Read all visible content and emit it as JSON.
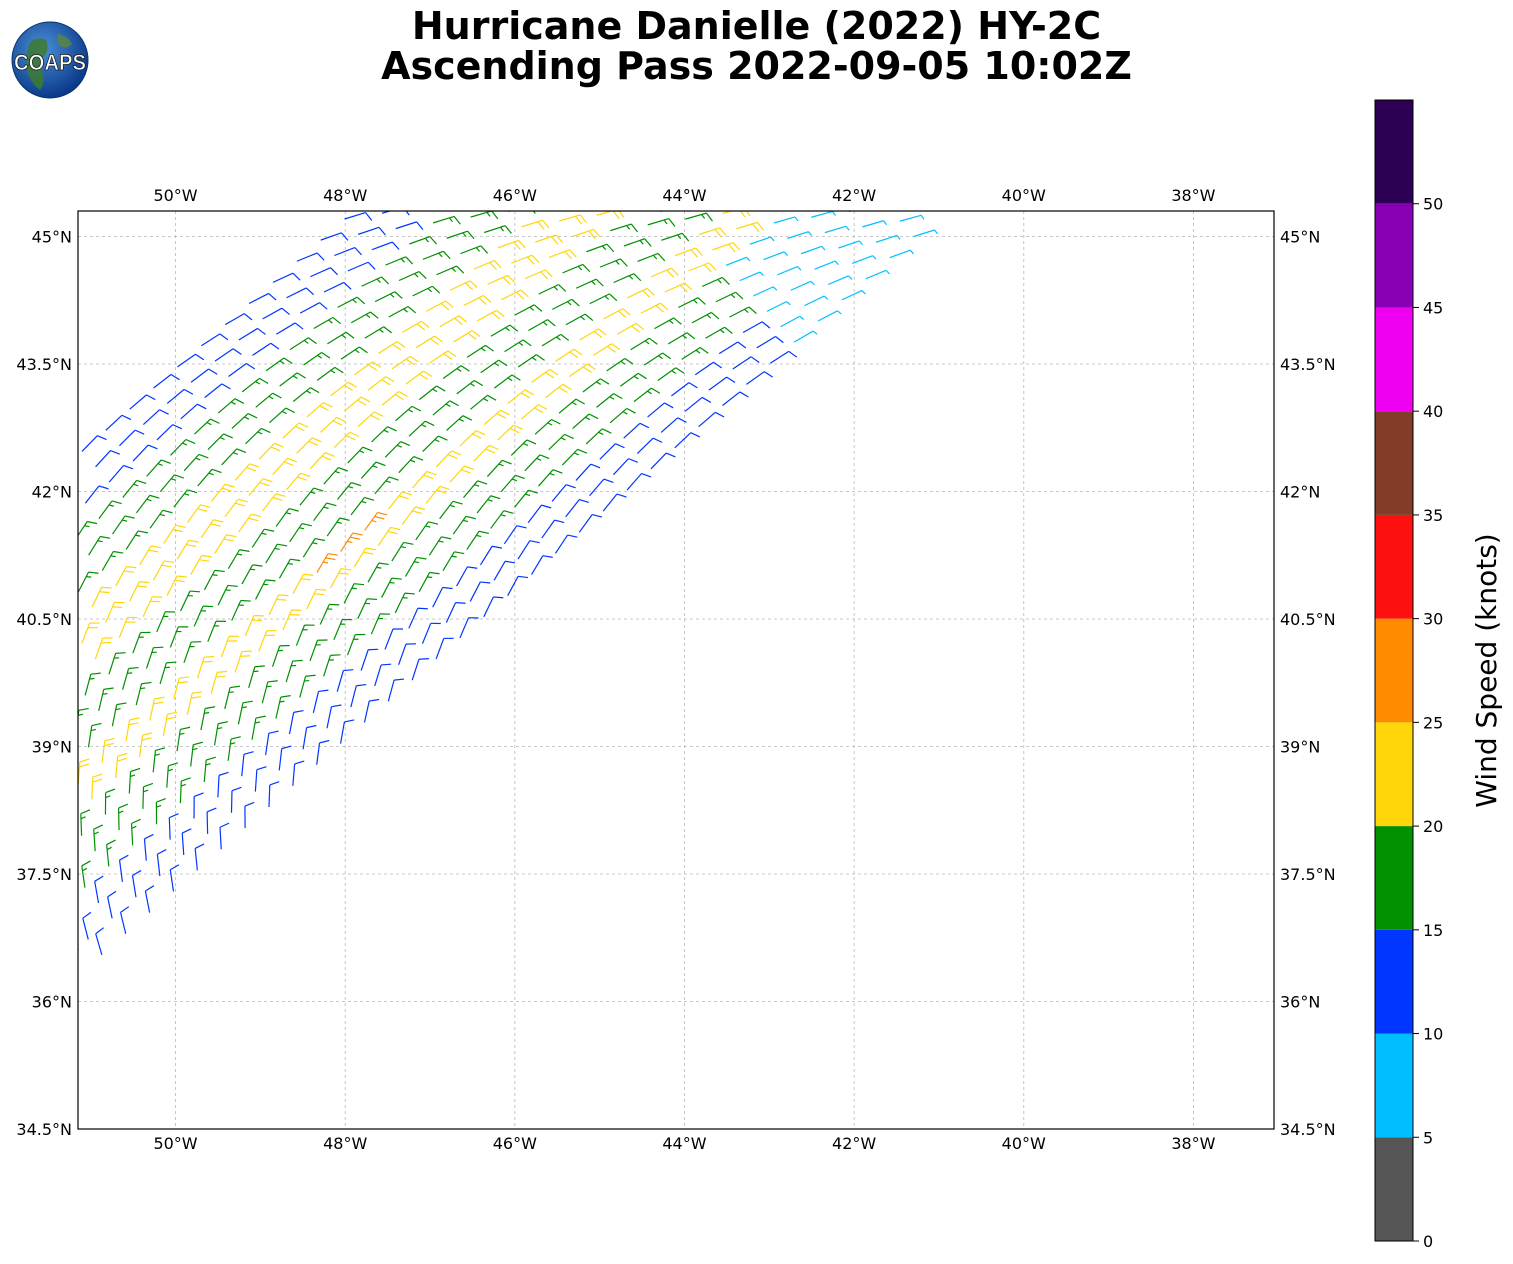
{
  "title": {
    "line1": "Hurricane Danielle (2022) HY-2C",
    "line2": "Ascending Pass 2022-09-05 10:02Z"
  },
  "logo": {
    "text": "COAPS",
    "icon": "globe-icon"
  },
  "map": {
    "lon_range": [
      -51.15,
      -37.05
    ],
    "lat_range": [
      34.5,
      45.3
    ],
    "lon_ticks": [
      {
        "value": -50,
        "label": "50°W"
      },
      {
        "value": -48,
        "label": "48°W"
      },
      {
        "value": -46,
        "label": "46°W"
      },
      {
        "value": -44,
        "label": "44°W"
      },
      {
        "value": -42,
        "label": "42°W"
      },
      {
        "value": -40,
        "label": "40°W"
      },
      {
        "value": -38,
        "label": "38°W"
      }
    ],
    "lat_ticks": [
      {
        "value": 45,
        "label": "45°N"
      },
      {
        "value": 43.5,
        "label": "43.5°N"
      },
      {
        "value": 42,
        "label": "42°N"
      },
      {
        "value": 40.5,
        "label": "40.5°N"
      },
      {
        "value": 39,
        "label": "39°N"
      },
      {
        "value": 37.5,
        "label": "37.5°N"
      },
      {
        "value": 36,
        "label": "36°N"
      },
      {
        "value": 34.5,
        "label": "34.5°N"
      }
    ],
    "grid": true
  },
  "colorbar": {
    "label": "Wind Speed (knots)",
    "ticks": [
      "0",
      "5",
      "10",
      "15",
      "20",
      "25",
      "30",
      "35",
      "40",
      "45",
      "50"
    ],
    "bins": [
      {
        "min": 0,
        "max": 5,
        "color": "#555555"
      },
      {
        "min": 5,
        "max": 10,
        "color": "#00bfff"
      },
      {
        "min": 10,
        "max": 15,
        "color": "#0036ff"
      },
      {
        "min": 15,
        "max": 20,
        "color": "#009000"
      },
      {
        "min": 20,
        "max": 25,
        "color": "#ffd60a"
      },
      {
        "min": 25,
        "max": 30,
        "color": "#ff8c00"
      },
      {
        "min": 30,
        "max": 35,
        "color": "#ff1010"
      },
      {
        "min": 35,
        "max": 40,
        "color": "#823c28"
      },
      {
        "min": 40,
        "max": 45,
        "color": "#f000f0"
      },
      {
        "min": 45,
        "max": 50,
        "color": "#8800b5"
      },
      {
        "min": 50,
        "max": 55,
        "color": "#2b0055"
      }
    ]
  },
  "chart_data": {
    "type": "scatter",
    "description_of_marks": "wind barbs",
    "swath": {
      "edge_start": [
        -51.15,
        36.3
      ],
      "edge_end": [
        -41.3,
        45.0
      ],
      "width_deg": 4.6,
      "along_track_rows": 36,
      "cross_track_cols": 20
    },
    "wind_bands": [
      {
        "from": 0.0,
        "to": 0.12,
        "speed": 12
      },
      {
        "from": 0.12,
        "to": 0.3,
        "speed": 17
      },
      {
        "from": 0.3,
        "to": 0.4,
        "speed": 22
      },
      {
        "from": 0.4,
        "to": 0.55,
        "speed": 17
      },
      {
        "from": 0.55,
        "to": 0.7,
        "speed": 22
      },
      {
        "from": 0.7,
        "to": 0.85,
        "speed": 17
      },
      {
        "from": 0.85,
        "to": 1.0,
        "speed": 12
      }
    ]
  }
}
